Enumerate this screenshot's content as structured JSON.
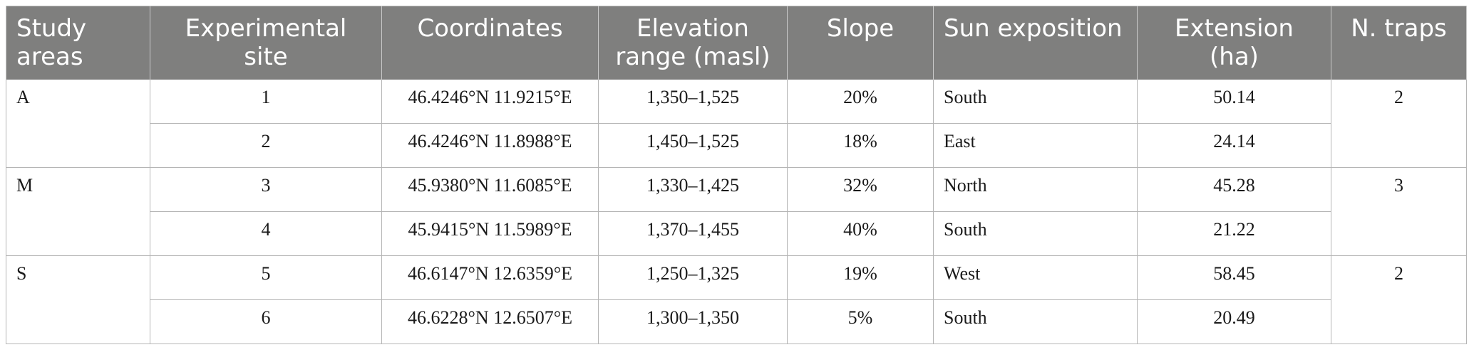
{
  "table": {
    "headers": [
      "Study areas",
      "Experimental site",
      "Coordinates",
      "Elevation range (masl)",
      "Slope",
      "Sun exposition",
      "Extension (ha)",
      "N. traps"
    ],
    "groups": [
      {
        "area": "A",
        "traps": "2",
        "rows": [
          {
            "site": "1",
            "coordinates": "46.4246°N 11.9215°E",
            "elevation": "1,350–1,525",
            "slope": "20%",
            "sun": "South",
            "extension": "50.14"
          },
          {
            "site": "2",
            "coordinates": "46.4246°N 11.8988°E",
            "elevation": "1,450–1,525",
            "slope": "18%",
            "sun": "East",
            "extension": "24.14"
          }
        ]
      },
      {
        "area": "M",
        "traps": "3",
        "rows": [
          {
            "site": "3",
            "coordinates": "45.9380°N 11.6085°E",
            "elevation": "1,330–1,425",
            "slope": "32%",
            "sun": "North",
            "extension": "45.28"
          },
          {
            "site": "4",
            "coordinates": "45.9415°N 11.5989°E",
            "elevation": "1,370–1,455",
            "slope": "40%",
            "sun": "South",
            "extension": "21.22"
          }
        ]
      },
      {
        "area": "S",
        "traps": "2",
        "rows": [
          {
            "site": "5",
            "coordinates": "46.6147°N 12.6359°E",
            "elevation": "1,250–1,325",
            "slope": "19%",
            "sun": "West",
            "extension": "58.45"
          },
          {
            "site": "6",
            "coordinates": "46.6228°N 12.6507°E",
            "elevation": "1,300–1,350",
            "slope": "5%",
            "sun": "South",
            "extension": "20.49"
          }
        ]
      }
    ]
  }
}
